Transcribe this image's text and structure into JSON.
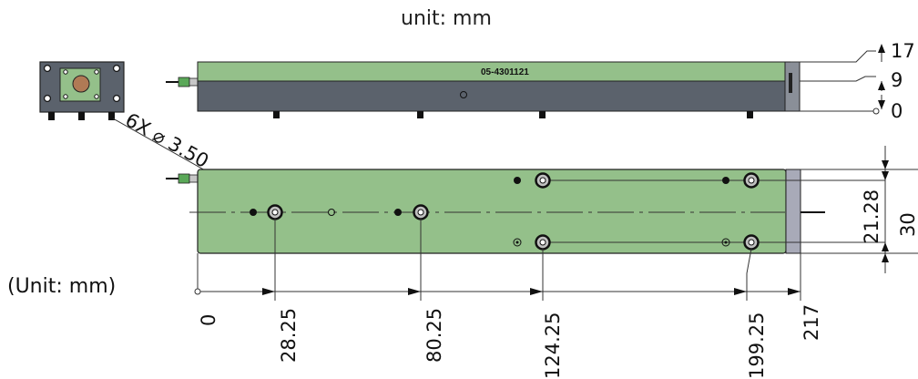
{
  "top_caption": "unit: mm",
  "left_caption": "(Unit: mm)",
  "part_number": "05-4301121",
  "hole_callout": "6X ⌀ 3.50",
  "side_heights": [
    "17",
    "9",
    "0"
  ],
  "top_view_widths": [
    "21.28",
    "30"
  ],
  "x_positions": [
    "0",
    "28.25",
    "80.25",
    "124.25",
    "199.25",
    "217"
  ],
  "colors": {
    "green_body": "#94c08a",
    "grey_base": "#5b626c",
    "end_cap": "#8a8f98",
    "end_cap_light": "#a8aab8",
    "connector_green": "#5aa858"
  }
}
